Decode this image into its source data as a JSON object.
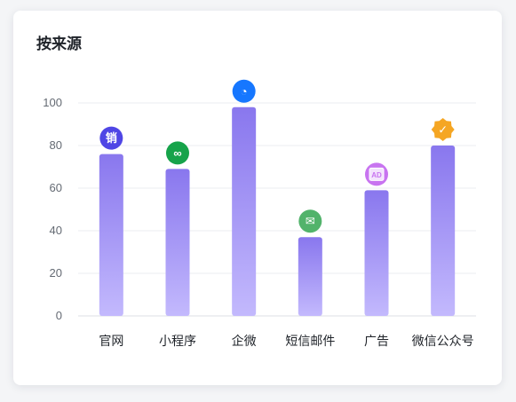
{
  "card": {
    "title": "按来源"
  },
  "chart_data": {
    "type": "bar",
    "title": "按来源",
    "xlabel": "",
    "ylabel": "",
    "categories": [
      "官网",
      "小程序",
      "企微",
      "短信邮件",
      "广告",
      "微信公众号"
    ],
    "values": [
      76,
      69,
      98,
      37,
      59,
      80
    ],
    "ylim": [
      0,
      100
    ],
    "yticks": [
      0,
      20,
      40,
      60,
      80,
      100
    ],
    "grid": true,
    "legend": "none",
    "colors": {
      "bar_top": "#8977ee",
      "bar_bottom": "#c3b9fd",
      "grid": "#ebedf0",
      "axis": "#dcdfe4"
    },
    "category_icons": [
      {
        "name": "sales-icon",
        "color": "#4f46e5",
        "glyph": "销"
      },
      {
        "name": "mini-program-icon",
        "color": "#16a34a",
        "glyph": "∞"
      },
      {
        "name": "wecom-icon",
        "color": "#1677ff",
        "glyph": "◔"
      },
      {
        "name": "mail-icon",
        "color": "#52b36b",
        "glyph": "✉"
      },
      {
        "name": "ad-icon",
        "color": "#c874f0",
        "glyph": "AD"
      },
      {
        "name": "verified-badge-icon",
        "color": "#f5a623",
        "glyph": "✓"
      }
    ]
  }
}
